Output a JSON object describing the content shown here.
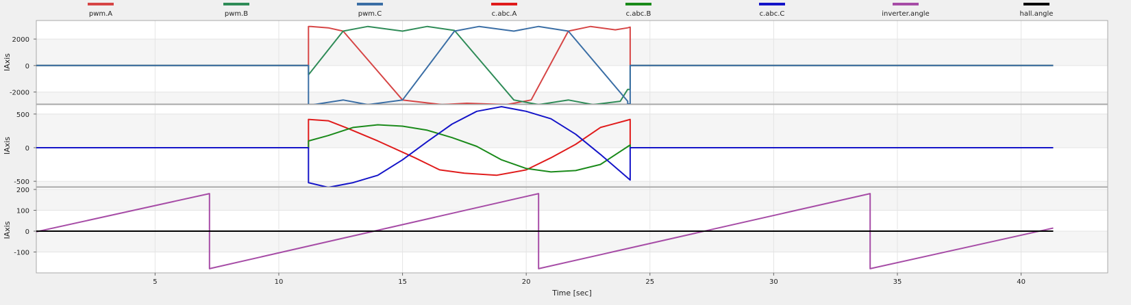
{
  "legend": [
    {
      "name": "pwm.A",
      "color": "#d64545"
    },
    {
      "name": "pwm.B",
      "color": "#2e8b57"
    },
    {
      "name": "pwm.C",
      "color": "#3a6ea5"
    },
    {
      "name": "c.abc.A",
      "color": "#e01b1b"
    },
    {
      "name": "c.abc.B",
      "color": "#1a8a1a"
    },
    {
      "name": "c.abc.C",
      "color": "#1414c8"
    },
    {
      "name": "inverter.angle",
      "color": "#a64ca6"
    },
    {
      "name": "hall.angle",
      "color": "#000000"
    }
  ],
  "xlabel": "Time [sec]",
  "chart_data": [
    {
      "type": "line",
      "ylabel": "IAxis",
      "ylim": [
        -2900,
        3400
      ],
      "yticks": [
        2000,
        0,
        -2000
      ],
      "ytick_labels": [
        "2000",
        "0",
        "-2000"
      ],
      "xlim": [
        0.2,
        43.5
      ],
      "series": [
        {
          "name": "pwm.A",
          "color": "#d64545",
          "x": [
            0.2,
            11.2,
            11.2,
            11.3,
            12.0,
            12.6,
            15.0,
            16.6,
            17.6,
            19.2,
            20.2,
            21.7,
            22.6,
            23.6,
            24.1,
            24.1,
            24.2,
            24.2,
            41.3
          ],
          "y": [
            0,
            0,
            2950,
            2950,
            2850,
            2600,
            -2600,
            -2950,
            -2850,
            -2950,
            -2600,
            2600,
            2950,
            2700,
            2850,
            2850,
            2900,
            0,
            0
          ]
        },
        {
          "name": "pwm.B",
          "color": "#2e8b57",
          "x": [
            0.2,
            11.2,
            11.2,
            12.6,
            13.6,
            15.0,
            16.0,
            17.1,
            19.5,
            20.5,
            21.7,
            22.7,
            23.8,
            24.1,
            24.2,
            24.2,
            41.3
          ],
          "y": [
            0,
            0,
            -700,
            2600,
            2950,
            2600,
            2950,
            2650,
            -2600,
            -2950,
            -2600,
            -2950,
            -2700,
            -1800,
            -1800,
            0,
            0
          ]
        },
        {
          "name": "pwm.C",
          "color": "#3a6ea5",
          "x": [
            0.2,
            11.2,
            11.2,
            11.4,
            12.6,
            13.6,
            15.0,
            17.1,
            18.1,
            19.5,
            20.5,
            21.7,
            24.1,
            24.1,
            24.2,
            24.2,
            41.3
          ],
          "y": [
            0,
            0,
            -2950,
            -2950,
            -2600,
            -2950,
            -2600,
            2600,
            2950,
            2600,
            2950,
            2600,
            -2700,
            -2900,
            -2900,
            0,
            0
          ]
        }
      ]
    },
    {
      "type": "line",
      "ylabel": "IAxis",
      "ylim": [
        -580,
        640
      ],
      "yticks": [
        500,
        0,
        -500
      ],
      "ytick_labels": [
        "500",
        "0",
        "-500"
      ],
      "xlim": [
        0.2,
        43.5
      ],
      "series": [
        {
          "name": "c.abc.A",
          "color": "#e01b1b",
          "x": [
            0.2,
            11.2,
            11.2,
            12.0,
            12.7,
            14.0,
            15.5,
            16.5,
            17.5,
            18.8,
            20.0,
            21.0,
            22.0,
            23.0,
            24.0,
            24.2,
            24.2,
            41.3
          ],
          "y": [
            0,
            0,
            420,
            400,
            300,
            100,
            -150,
            -330,
            -380,
            -410,
            -330,
            -150,
            50,
            300,
            400,
            420,
            0,
            0
          ]
        },
        {
          "name": "c.abc.B",
          "color": "#1a8a1a",
          "x": [
            0.2,
            11.2,
            11.2,
            12.0,
            13.0,
            14.0,
            15.0,
            16.0,
            17.0,
            18.0,
            19.0,
            20.0,
            21.0,
            22.0,
            23.0,
            24.2,
            24.2,
            41.3
          ],
          "y": [
            0,
            0,
            100,
            180,
            300,
            340,
            320,
            260,
            150,
            20,
            -180,
            -310,
            -360,
            -340,
            -250,
            40,
            0,
            0
          ]
        },
        {
          "name": "c.abc.C",
          "color": "#1414c8",
          "x": [
            0.2,
            11.2,
            11.2,
            12.0,
            13.0,
            14.0,
            15.0,
            16.0,
            17.0,
            18.0,
            19.0,
            20.0,
            21.0,
            22.0,
            23.0,
            24.2,
            24.2,
            41.3
          ],
          "y": [
            0,
            0,
            -520,
            -590,
            -520,
            -410,
            -180,
            90,
            350,
            540,
            610,
            540,
            430,
            200,
            -100,
            -480,
            0,
            0
          ]
        }
      ]
    },
    {
      "type": "line",
      "ylabel": "IAxis",
      "ylim": [
        -200,
        210
      ],
      "yticks": [
        200,
        100,
        0,
        -100
      ],
      "ytick_labels": [
        "200",
        "100",
        "0",
        "-100"
      ],
      "xlim": [
        0.2,
        43.5
      ],
      "xticks": [
        5,
        10,
        15,
        20,
        25,
        30,
        35,
        40
      ],
      "xtick_labels": [
        "5",
        "10",
        "15",
        "20",
        "25",
        "30",
        "35",
        "40"
      ],
      "series": [
        {
          "name": "inverter.angle",
          "color": "#a64ca6",
          "x": [
            0.2,
            7.2,
            7.2,
            20.5,
            20.5,
            33.9,
            33.9,
            41.3
          ],
          "y": [
            -3,
            180,
            -180,
            180,
            -180,
            180,
            -180,
            15
          ]
        },
        {
          "name": "hall.angle",
          "color": "#000000",
          "x": [
            0.2,
            41.3
          ],
          "y": [
            0,
            0
          ]
        }
      ]
    }
  ]
}
